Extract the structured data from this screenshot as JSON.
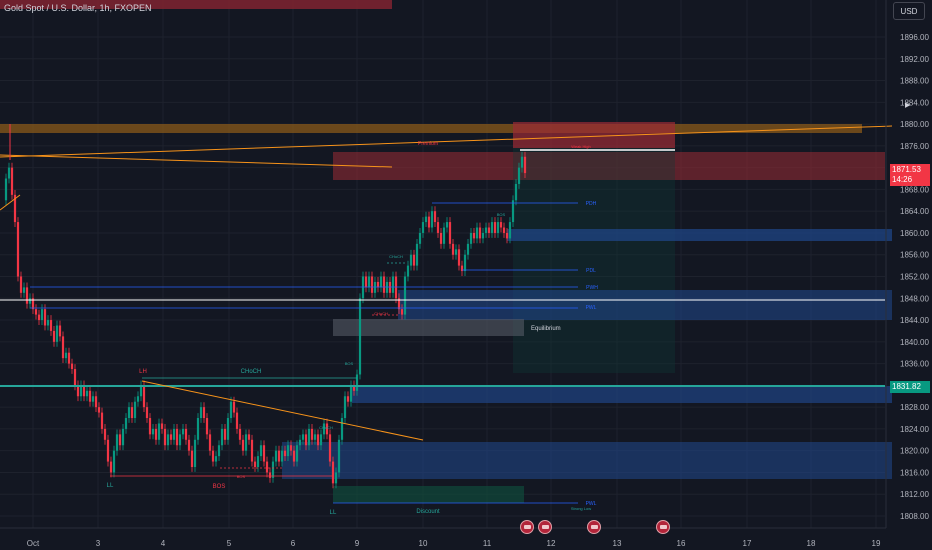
{
  "header": {
    "title": "Gold Spot / U.S. Dollar, 1h, FXOPEN",
    "currency_button": "USD"
  },
  "price_axis": {
    "ticks": [
      "1896.00",
      "1892.00",
      "1888.00",
      "1884.00",
      "1880.00",
      "1876.00",
      "1872.00",
      "1868.00",
      "1864.00",
      "1860.00",
      "1856.00",
      "1852.00",
      "1848.00",
      "1844.00",
      "1840.00",
      "1836.00",
      "1832.00",
      "1828.00",
      "1824.00",
      "1820.00",
      "1816.00",
      "1812.00",
      "1808.00"
    ],
    "current_price": "1871.53",
    "countdown": "14:26",
    "marked_price": "1831.82"
  },
  "time_axis": {
    "ticks": [
      "Oct",
      "3",
      "4",
      "5",
      "6",
      "9",
      "10",
      "11",
      "12",
      "13",
      "16",
      "17",
      "18",
      "19"
    ]
  },
  "annotations": {
    "lh": "LH",
    "choch": "CHoCH",
    "ll_left": "LL",
    "bos": "BOS",
    "ll_mid": "LL",
    "discount": "Discount",
    "equilibrium": "Equilibrium",
    "premium": "Premium",
    "pdh": "PDH",
    "pdl": "PDL",
    "pwh": "PWH",
    "pwl": "PWL",
    "strong_high": "Weak High",
    "strong_low": "Strong Low",
    "choch_upper": "CHoCH",
    "choch_red": "CHoCH",
    "bos_small": "BOS",
    "bos_upper": "BOS",
    "bos_tiny": "BOS",
    "choch_tiny": "CHoCH"
  },
  "colors": {
    "background": "#131722",
    "bull": "#089981",
    "bear": "#f23645",
    "trendline": "#f7931a",
    "grid": "#1e222d",
    "zone_red": "#7a2230",
    "zone_blue": "#1e3a6e"
  }
}
